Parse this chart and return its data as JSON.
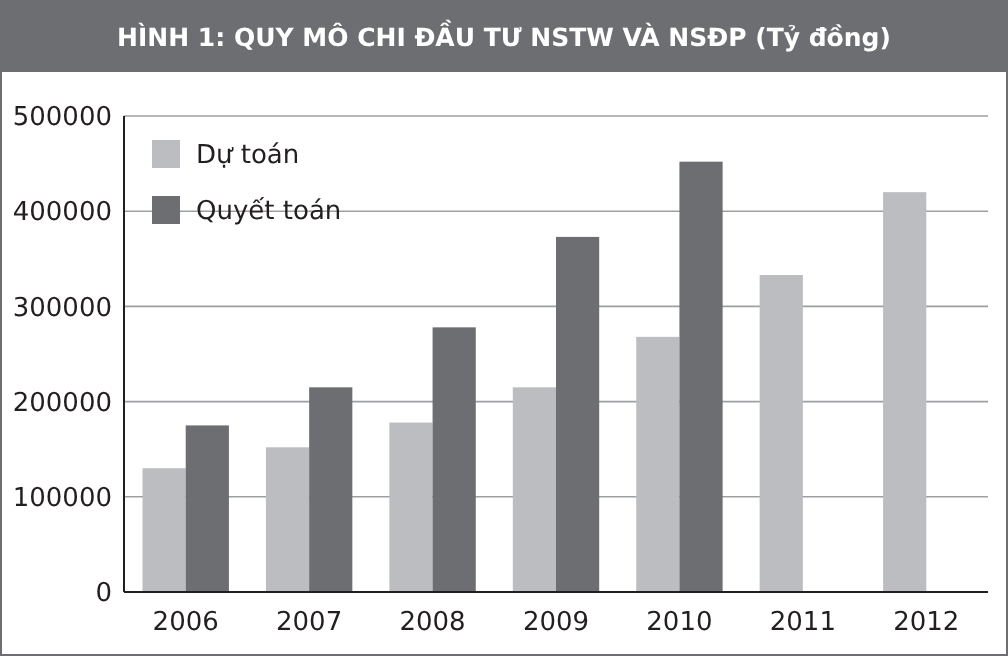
{
  "chart_data": {
    "type": "bar",
    "title": "HÌNH 1: QUY MÔ CHI ĐẦU TƯ NSTW VÀ NSĐP (Tỷ đồng)",
    "categories": [
      "2006",
      "2007",
      "2008",
      "2009",
      "2010",
      "2011",
      "2012"
    ],
    "series": [
      {
        "name": "Dự toán",
        "color": "#bcbdc0",
        "values": [
          130000,
          152000,
          178000,
          215000,
          268000,
          333000,
          420000
        ]
      },
      {
        "name": "Quyết toán",
        "color": "#6d6e71",
        "values": [
          175000,
          215000,
          278000,
          373000,
          452000,
          null,
          null
        ]
      }
    ],
    "ylim": [
      0,
      500000
    ],
    "yticks": [
      0,
      100000,
      200000,
      300000,
      400000,
      500000
    ],
    "grid": "y",
    "legend": "top left"
  }
}
